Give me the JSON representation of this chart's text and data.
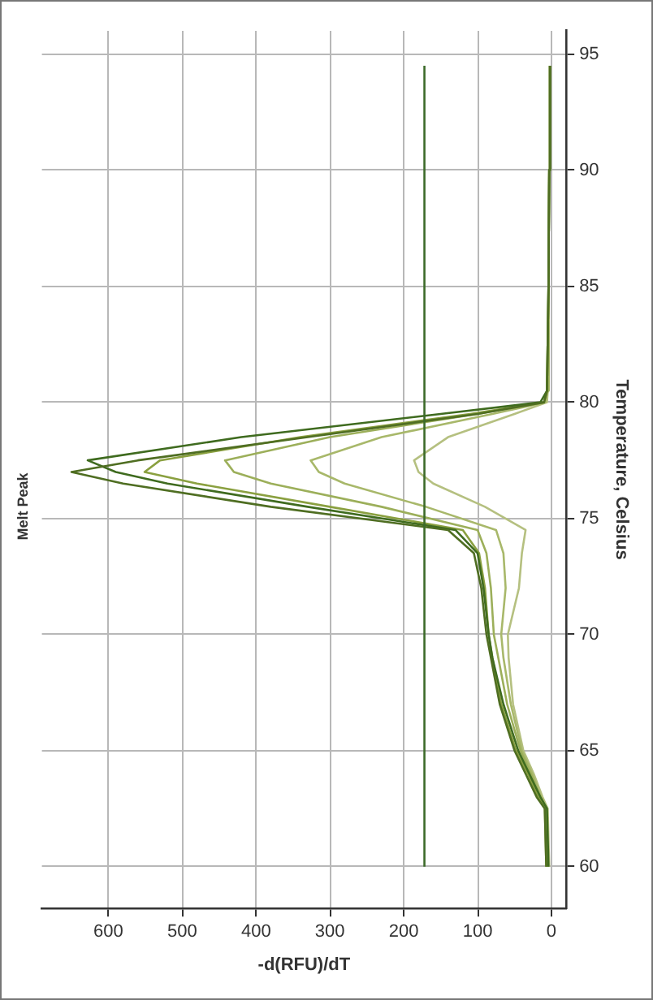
{
  "chart_data": {
    "type": "line",
    "title": "Melt Peak",
    "xlabel": "-d(RFU)/dT",
    "ylabel": "Temperature, Celsius",
    "series": [
      {
        "color": "#4f6e22",
        "x": [
          7,
          9,
          20,
          35,
          50,
          70,
          82,
          88,
          95,
          105,
          140,
          380,
          580,
          650,
          560,
          330,
          100,
          10,
          6,
          4,
          3,
          2
        ],
        "values": [
          60,
          62.5,
          63,
          64,
          65,
          67,
          69,
          70,
          72,
          73.5,
          74.5,
          75.5,
          76.5,
          77,
          77.5,
          78.5,
          79.5,
          80,
          80.5,
          85,
          90,
          94.5
        ]
      },
      {
        "color": "#3f6b1f",
        "x": [
          4,
          6,
          15,
          30,
          45,
          65,
          80,
          85,
          92,
          100,
          130,
          330,
          520,
          590,
          628,
          420,
          150,
          15,
          6,
          4,
          3,
          2
        ],
        "values": [
          60,
          62.5,
          63,
          64,
          65,
          67,
          69,
          70,
          72,
          73.5,
          74.5,
          75.5,
          76.5,
          77,
          77.5,
          78.5,
          79.5,
          80,
          80.5,
          85,
          90,
          94.5
        ]
      },
      {
        "color": "#8aa040",
        "x": [
          7,
          9,
          18,
          32,
          48,
          68,
          80,
          85,
          90,
          98,
          120,
          300,
          480,
          551,
          530,
          340,
          110,
          10,
          6,
          4,
          3,
          2
        ],
        "values": [
          60,
          62.5,
          63,
          64,
          65,
          67,
          69,
          70,
          72,
          73.5,
          74.5,
          75.5,
          76.5,
          77,
          77.5,
          78.5,
          79.5,
          80,
          80.5,
          85,
          90,
          94.5
        ]
      },
      {
        "color": "#9caf5a",
        "x": [
          5,
          7,
          15,
          28,
          42,
          60,
          72,
          78,
          82,
          88,
          100,
          230,
          380,
          430,
          442,
          300,
          100,
          10,
          5,
          4,
          3,
          2
        ],
        "values": [
          60,
          62.5,
          63,
          64,
          65,
          67,
          69,
          70,
          72,
          73.5,
          74.5,
          75.5,
          76.5,
          77,
          77.5,
          78.5,
          79.5,
          80,
          80.5,
          85,
          90,
          94.5
        ]
      },
      {
        "color": "#a8b86a",
        "x": [
          5,
          7,
          14,
          26,
          40,
          55,
          65,
          68,
          62,
          65,
          75,
          170,
          280,
          315,
          326,
          230,
          80,
          8,
          5,
          4,
          3,
          2
        ],
        "values": [
          60,
          62.5,
          63,
          64,
          65,
          67,
          69,
          70,
          72,
          73.5,
          74.5,
          75.5,
          76.5,
          77,
          77.5,
          78.5,
          79.5,
          80,
          80.5,
          85,
          90,
          94.5
        ]
      },
      {
        "color": "#b5c080",
        "x": [
          3,
          5,
          12,
          24,
          38,
          52,
          58,
          59,
          44,
          40,
          35,
          90,
          160,
          180,
          186,
          140,
          50,
          6,
          5,
          4,
          3,
          2
        ],
        "values": [
          60,
          62.5,
          63,
          64,
          65,
          67,
          69,
          70,
          72,
          73.5,
          74.5,
          75.5,
          76.5,
          77,
          77.5,
          78.5,
          79.5,
          80,
          80.5,
          85,
          90,
          94.5
        ]
      }
    ],
    "ref_lines": [
      {
        "axis": "x",
        "value": 172,
        "color": "#3d6b2a"
      }
    ],
    "xlim": [
      690,
      -20
    ],
    "xticks": [
      0,
      100,
      200,
      300,
      400,
      500,
      600
    ],
    "ylim": [
      58.2,
      96
    ],
    "yticks": [
      60,
      65,
      70,
      75,
      80,
      85,
      90,
      95
    ],
    "grid": true,
    "legend": false,
    "marker": "none",
    "line_style": "solid"
  }
}
